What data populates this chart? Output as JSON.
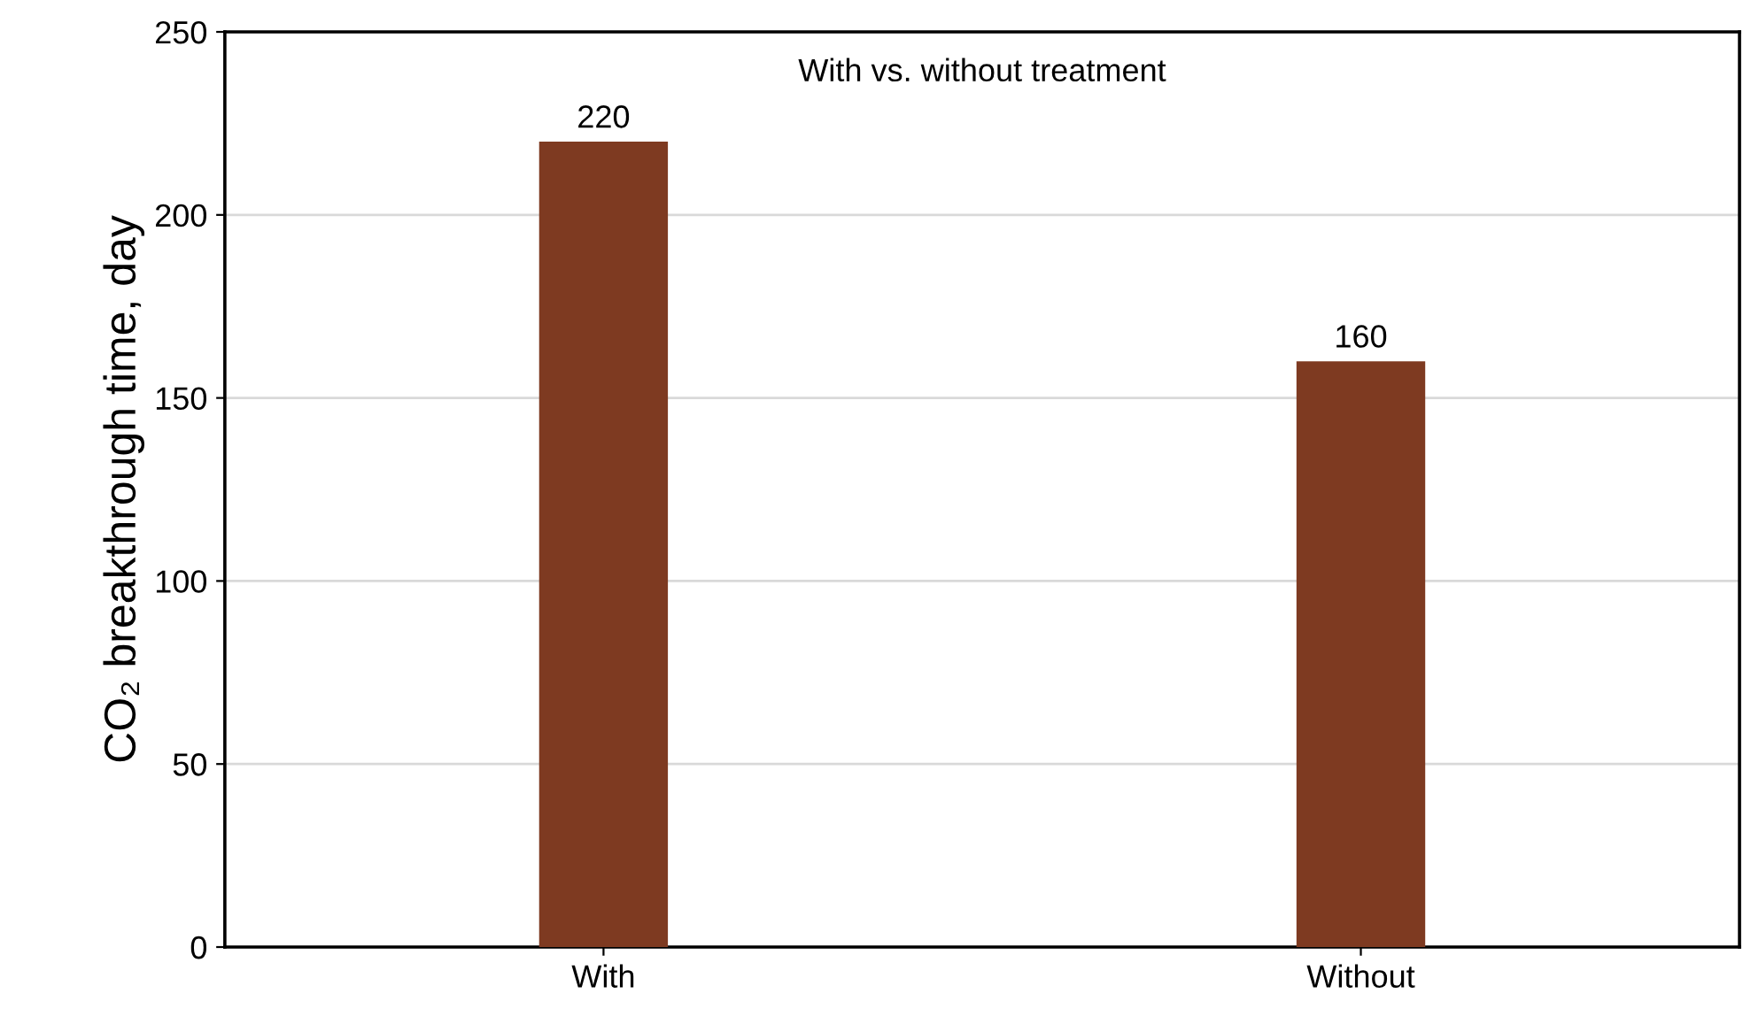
{
  "chart_data": {
    "type": "bar",
    "title": "With vs. without treatment",
    "ylabel": "CO₂ breakthrough time, day",
    "categories": [
      "With",
      "Without"
    ],
    "values": [
      220,
      160
    ],
    "color": "#7e3a21",
    "ylim": [
      0,
      250
    ],
    "yticks": [
      0,
      50,
      100,
      150,
      200,
      250
    ],
    "grid": "y",
    "data_labels": true,
    "legend": false
  }
}
